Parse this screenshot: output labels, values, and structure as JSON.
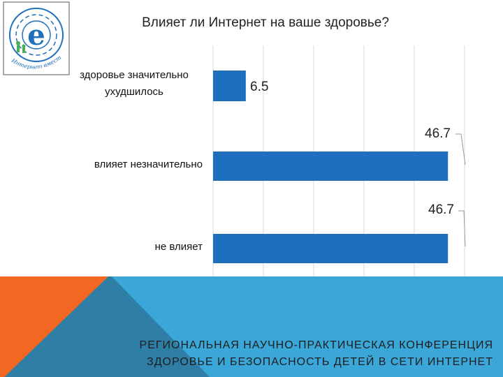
{
  "title": "Влияет ли Интернет на ваше здоровье?",
  "logo": {
    "text": "Интернет вместе вместе",
    "icon": "e-logo-icon"
  },
  "colors": {
    "bar": "#1f6fbf",
    "footer_blue": "#3aa7d8",
    "footer_dark": "#2e7ea6",
    "footer_orange": "#f26722"
  },
  "chart_data": {
    "type": "bar",
    "orientation": "horizontal",
    "categories": [
      "здоровье значительно ухудшилось",
      "влияет незначительно",
      "не влияет"
    ],
    "category_lines": [
      [
        "здоровье значительно",
        "ухудшилось"
      ],
      [
        "влияет незначительно"
      ],
      [
        "не влияет"
      ]
    ],
    "values": [
      6.5,
      46.7,
      46.7
    ],
    "value_labels": [
      "6.5",
      "46.7",
      "46.7"
    ],
    "xlim": [
      0,
      50
    ],
    "grid": true,
    "title": "Влияет ли Интернет на ваше здоровье?"
  },
  "footer": {
    "line1": "РЕГИОНАЛЬНАЯ НАУЧНО-ПРАКТИЧЕСКАЯ КОНФЕРЕНЦИЯ",
    "line2": "ЗДОРОВЬЕ И БЕЗОПАСНОСТЬ ДЕТЕЙ В СЕТИ ИНТЕРНЕТ"
  }
}
